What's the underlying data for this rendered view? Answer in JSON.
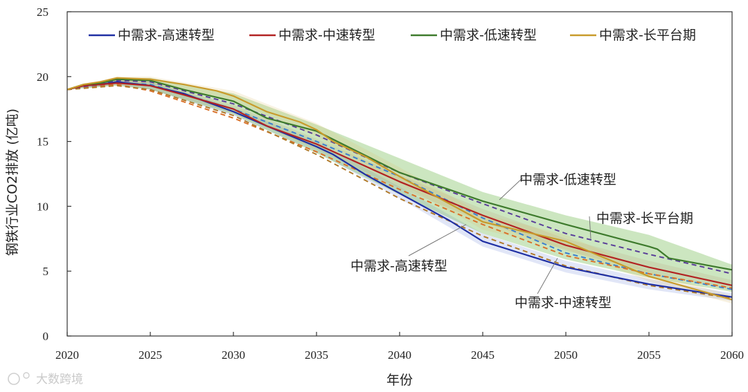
{
  "watermark": "大数跨境",
  "chart_data": {
    "type": "line",
    "title": "",
    "xlabel": "年份",
    "ylabel": "钢铁行业CO2排放 (亿吨)",
    "xlim": [
      2020,
      2060
    ],
    "ylim": [
      0,
      25
    ],
    "xticks": [
      2020,
      2025,
      2030,
      2035,
      2040,
      2045,
      2050,
      2055,
      2060
    ],
    "yticks": [
      0,
      5,
      10,
      15,
      20,
      25
    ],
    "grid": false,
    "legend_position": "top",
    "series": [
      {
        "name": "中需求-高速转型",
        "color": "#1f2fa3",
        "x": [
          2020,
          2021,
          2022,
          2023,
          2025,
          2027,
          2030,
          2032,
          2035,
          2036,
          2038,
          2040,
          2043,
          2045,
          2050,
          2055,
          2060
        ],
        "y": [
          19.0,
          19.3,
          19.4,
          19.6,
          19.3,
          18.7,
          17.3,
          16.2,
          14.6,
          14.0,
          12.4,
          11.0,
          8.9,
          7.3,
          5.3,
          4.0,
          3.0
        ],
        "band": [
          [
            2020,
            19.0,
            19.0
          ],
          [
            2023,
            19.4,
            19.8
          ],
          [
            2025,
            19.0,
            19.6
          ],
          [
            2030,
            17.0,
            17.6
          ],
          [
            2035,
            14.2,
            15.0
          ],
          [
            2040,
            10.6,
            11.5
          ],
          [
            2045,
            6.9,
            7.9
          ],
          [
            2050,
            4.9,
            5.8
          ],
          [
            2055,
            3.6,
            4.4
          ],
          [
            2060,
            2.7,
            3.3
          ]
        ],
        "dashed": {
          "x": [
            2020,
            2023,
            2025,
            2030,
            2035,
            2040,
            2045,
            2050,
            2055,
            2060
          ],
          "y": [
            19.0,
            19.5,
            19.4,
            17.5,
            15.0,
            12.3,
            9.1,
            6.4,
            4.8,
            3.6
          ]
        }
      },
      {
        "name": "中需求-中速转型",
        "color": "#b22222",
        "x": [
          2020,
          2021,
          2022,
          2023,
          2025,
          2027,
          2030,
          2032,
          2035,
          2040,
          2045,
          2050,
          2055,
          2060
        ],
        "y": [
          19.0,
          19.3,
          19.4,
          19.5,
          19.3,
          18.6,
          17.5,
          16.2,
          14.8,
          11.9,
          9.3,
          7.0,
          5.3,
          3.9
        ],
        "band": [
          [
            2020,
            19.0,
            19.0
          ],
          [
            2023,
            19.3,
            19.7
          ],
          [
            2025,
            19.0,
            19.6
          ],
          [
            2030,
            17.2,
            17.8
          ],
          [
            2035,
            14.4,
            15.2
          ],
          [
            2040,
            11.4,
            12.4
          ],
          [
            2045,
            8.8,
            9.8
          ],
          [
            2050,
            6.6,
            7.5
          ],
          [
            2055,
            4.9,
            5.8
          ],
          [
            2060,
            3.5,
            4.3
          ]
        ],
        "dashed": {
          "x": [
            2020,
            2023,
            2025,
            2030,
            2035,
            2040,
            2045,
            2050,
            2055,
            2060
          ],
          "y": [
            19.0,
            19.4,
            18.9,
            16.8,
            14.2,
            11.3,
            8.6,
            6.2,
            4.8,
            3.7
          ]
        }
      },
      {
        "name": "中需求-低速转型",
        "color": "#3d7a2c",
        "x": [
          2020,
          2021,
          2022,
          2023,
          2025,
          2027,
          2030,
          2032,
          2035,
          2040,
          2045,
          2050,
          2055,
          2055.5,
          2056.2,
          2060
        ],
        "y": [
          19.0,
          19.4,
          19.5,
          19.8,
          19.7,
          19.0,
          18.1,
          16.8,
          15.8,
          12.6,
          10.4,
          8.6,
          6.9,
          6.7,
          6.0,
          5.1
        ],
        "band": [
          [
            2020,
            19.0,
            19.0
          ],
          [
            2023,
            19.3,
            19.9
          ],
          [
            2025,
            19.0,
            19.9
          ],
          [
            2030,
            17.1,
            18.7
          ],
          [
            2035,
            14.1,
            16.3
          ],
          [
            2040,
            10.9,
            13.7
          ],
          [
            2045,
            7.9,
            11.1
          ],
          [
            2050,
            5.9,
            9.3
          ],
          [
            2055,
            4.5,
            7.8
          ],
          [
            2060,
            3.4,
            5.5
          ]
        ],
        "dashed": {
          "x": [
            2020,
            2023,
            2025,
            2030,
            2035,
            2040,
            2045,
            2050,
            2055,
            2060
          ],
          "y": [
            19.0,
            19.7,
            19.6,
            17.9,
            15.5,
            12.6,
            10.2,
            7.9,
            6.3,
            4.8
          ]
        }
      },
      {
        "name": "中需求-长平台期",
        "color": "#c89a2a",
        "x": [
          2020,
          2021,
          2022,
          2023,
          2025,
          2027,
          2029,
          2030,
          2032,
          2034,
          2035,
          2036,
          2038,
          2040,
          2045,
          2050,
          2052,
          2055,
          2060
        ],
        "y": [
          19.0,
          19.4,
          19.6,
          19.9,
          19.8,
          19.4,
          18.9,
          18.5,
          17.3,
          16.5,
          15.9,
          15.0,
          13.8,
          12.3,
          8.8,
          7.3,
          6.2,
          4.6,
          2.8
        ],
        "band": [
          [
            2020,
            19.0,
            19.0
          ],
          [
            2023,
            19.6,
            20.0
          ],
          [
            2025,
            19.5,
            20.0
          ],
          [
            2030,
            18.1,
            18.9
          ],
          [
            2035,
            15.4,
            16.4
          ],
          [
            2040,
            11.8,
            13.0
          ],
          [
            2045,
            8.2,
            9.4
          ],
          [
            2050,
            6.7,
            7.8
          ],
          [
            2055,
            4.2,
            5.0
          ],
          [
            2060,
            2.5,
            3.1
          ]
        ],
        "dashed": {
          "x": [
            2020,
            2023,
            2025,
            2030,
            2035,
            2040,
            2045,
            2050,
            2055,
            2060
          ],
          "y": [
            19.0,
            19.3,
            19.0,
            17.0,
            14.0,
            10.6,
            7.7,
            5.4,
            3.9,
            2.9
          ]
        }
      }
    ],
    "annotations": [
      {
        "text": "中需求-低速转型",
        "point": [
          2046,
          10.5
        ]
      },
      {
        "text": "中需求-长平台期",
        "point": [
          2051.5,
          7.5
        ]
      },
      {
        "text": "中需求-高速转型",
        "point": [
          2044,
          8.6
        ]
      },
      {
        "text": "中需求-中速转型",
        "point": [
          2049.5,
          6.0
        ]
      }
    ]
  }
}
